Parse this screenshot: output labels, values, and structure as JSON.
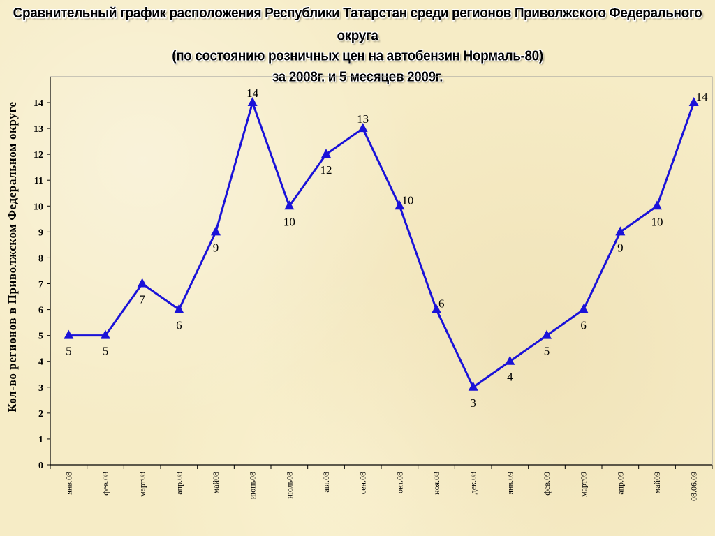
{
  "chart_data": {
    "type": "line",
    "title": [
      "Сравнительный график расположения Республики Татарстан среди регионов Приволжского Федерального округа",
      "(по состоянию розничных цен на автобензин Нормаль-80)",
      "за 2008г. и 5 месяцев 2009г."
    ],
    "xlabel": "",
    "ylabel": "Кол-во регионов в Приволжском Федеральном округе",
    "ylim": [
      0,
      14
    ],
    "yticks": [
      "0",
      "1",
      "2",
      "3",
      "4",
      "5",
      "6",
      "7",
      "8",
      "9",
      "10",
      "11",
      "12",
      "13",
      "14"
    ],
    "categories": [
      "янв.08",
      "фев.08",
      "март08",
      "апр.08",
      "май08",
      "июнь08",
      "июль08",
      "авг.08",
      "сен.08",
      "окт.08",
      "ноя.08",
      "дек.08",
      "янв.09",
      "фев.09",
      "март09",
      "апр.09",
      "май09",
      "08.06.09"
    ],
    "values": [
      5,
      5,
      7,
      6,
      9,
      14,
      10,
      12,
      13,
      10,
      6,
      3,
      4,
      5,
      6,
      9,
      10,
      14
    ],
    "label_positions": [
      "below",
      "below",
      "below",
      "below",
      "below",
      "above",
      "below",
      "below",
      "above",
      "right",
      "right",
      "below",
      "below",
      "below",
      "below",
      "below",
      "below",
      "right"
    ],
    "grid": {
      "horizontal": false,
      "vertical": false
    },
    "legend": "none",
    "colors": {
      "line": "#1a12d8",
      "marker": "#1a12d8",
      "axis": "#000000",
      "text": "#000000"
    },
    "marker": "triangle"
  }
}
